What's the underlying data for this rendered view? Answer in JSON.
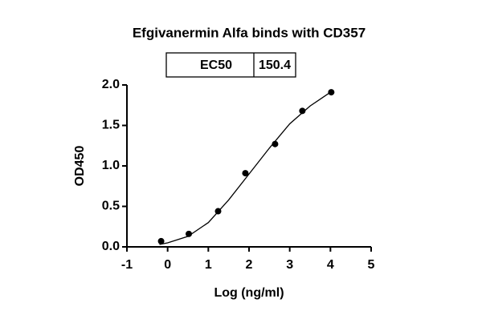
{
  "chart_data": {
    "type": "scatter",
    "title": "Efgivanermin Alfa binds with CD357",
    "annotation": {
      "label": "EC50",
      "value": 150.4
    },
    "xlabel": "Log (ng/ml)",
    "ylabel": "OD450",
    "xlim": [
      -1,
      5
    ],
    "xticks": [
      -1,
      0,
      1,
      2,
      3,
      4,
      5
    ],
    "ylim": [
      0,
      2
    ],
    "yticks": [
      {
        "value": 0,
        "label": "0.0"
      },
      0.5,
      {
        "value": 1,
        "label": "1.0"
      },
      1.5,
      {
        "value": 2,
        "label": "2.0"
      }
    ],
    "series": [
      {
        "color": "#000000",
        "x": [
          -0.16,
          0.52,
          1.24,
          1.91,
          2.64,
          3.31,
          4.02
        ],
        "values": [
          0.07,
          0.16,
          0.44,
          0.91,
          1.27,
          1.68,
          1.91
        ]
      },
      {
        "type": "line",
        "color": "#000000",
        "x": [
          -0.2,
          0,
          0.5,
          1,
          1.5,
          2,
          2.5,
          3,
          3.5,
          4
        ],
        "values": [
          0.03,
          0.05,
          0.13,
          0.3,
          0.58,
          0.9,
          1.22,
          1.52,
          1.74,
          1.91
        ]
      }
    ]
  }
}
